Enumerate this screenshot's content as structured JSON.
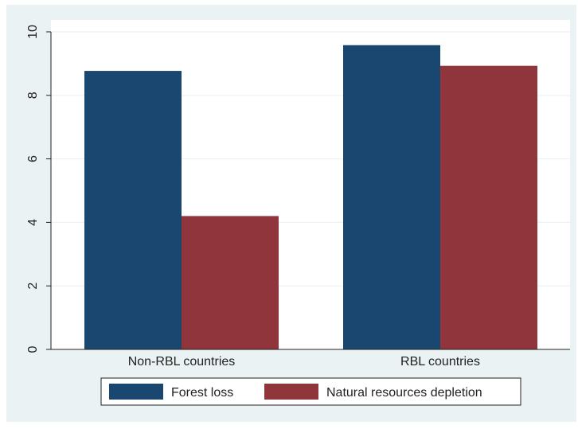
{
  "chart_data": {
    "type": "bar",
    "categories": [
      "Non-RBL countries",
      "RBL countries"
    ],
    "series": [
      {
        "name": "Forest loss",
        "values": [
          8.77,
          9.58
        ],
        "color": "#1a476f"
      },
      {
        "name": "Natural resources depletion",
        "values": [
          4.2,
          8.93
        ],
        "color": "#90353b"
      }
    ],
    "ylim": [
      0,
      10
    ],
    "yticks": [
      0,
      2,
      4,
      6,
      8,
      10
    ],
    "ytick_labels": [
      "0",
      "2",
      "4",
      "6",
      "8",
      "10"
    ],
    "grid": true,
    "legend_position": "bottom",
    "background_outer": "#eaf2f3",
    "background_plot": "#ffffff",
    "grid_color": "#eaf2f3"
  }
}
